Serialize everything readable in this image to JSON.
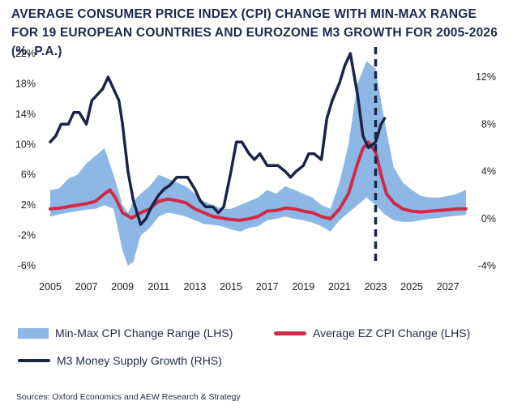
{
  "title": "AVERAGE CONSUMER PRICE INDEX (CPI) CHANGE WITH MIN-MAX RANGE FOR 19 EUROPEAN COUNTRIES AND EUROZONE M3 GROWTH FOR 2005-2026 (%, P.A.)",
  "source": "Sources: Oxford Economics and AEW Research & Strategy",
  "colors": {
    "range": "#8db8e5",
    "average": "#d02a46",
    "m3": "#1b2447",
    "marker": "#1b2447"
  },
  "legend": {
    "range": "Min-Max CPI Change Range (LHS)",
    "average": "Average EZ CPI Change (LHS)",
    "m3": "M3 Money Supply Growth (RHS)"
  },
  "chart_data": {
    "type": "line",
    "x_ticks": [
      "2005",
      "2007",
      "2009",
      "2011",
      "2013",
      "2015",
      "2017",
      "2019",
      "2021",
      "2023",
      "2025",
      "2027"
    ],
    "y_left_ticks": [
      "22%",
      "18%",
      "14%",
      "10%",
      "6%",
      "2%",
      "-2%",
      "-6%"
    ],
    "y_right_ticks": [
      "12%",
      "8%",
      "4%",
      "0%",
      "-4%"
    ],
    "ylim_left": [
      -6,
      22
    ],
    "ylim_right": [
      -4,
      14
    ],
    "vertical_marker_x": 2023,
    "series": [
      {
        "name": "Min-Max CPI Change Range (LHS)",
        "kind": "range",
        "x": [
          2005,
          2005.5,
          2006,
          2006.5,
          2007,
          2007.5,
          2008,
          2008.5,
          2009,
          2009.3,
          2009.6,
          2010,
          2010.5,
          2011,
          2011.5,
          2012,
          2012.5,
          2013,
          2013.5,
          2014,
          2014.5,
          2015,
          2015.5,
          2016,
          2016.5,
          2017,
          2017.5,
          2018,
          2018.5,
          2019,
          2019.5,
          2020,
          2020.5,
          2021,
          2021.5,
          2022,
          2022.5,
          2023,
          2023.5,
          2024,
          2024.5,
          2025,
          2025.5,
          2026,
          2026.5,
          2027,
          2027.5,
          2028
        ],
        "low": [
          0.5,
          0.8,
          1.0,
          1.2,
          1.4,
          1.5,
          2.0,
          1.5,
          -4,
          -6,
          -5.5,
          -2,
          -1,
          0.5,
          1,
          0.8,
          0.5,
          0,
          -0.5,
          -0.6,
          -0.8,
          -1.2,
          -1.5,
          -1,
          -0.8,
          0,
          0.2,
          0.5,
          0.2,
          0,
          -0.3,
          -0.8,
          -1.5,
          0,
          1,
          2,
          3,
          2,
          0.8,
          0,
          -0.2,
          -0.2,
          0,
          0.2,
          0.3,
          0.5,
          0.6,
          0.7
        ],
        "high": [
          4,
          4.2,
          5.5,
          6,
          7.5,
          8.5,
          9.5,
          6,
          2,
          1,
          2.5,
          3.5,
          4.5,
          6,
          5.5,
          5,
          4.5,
          3.5,
          2.5,
          2,
          1.5,
          1.5,
          2,
          2.5,
          3,
          4,
          3.5,
          4.5,
          4,
          3.5,
          3,
          2,
          1.5,
          5,
          10,
          18,
          21,
          20,
          13,
          7,
          5,
          4,
          3.2,
          3,
          3,
          3.2,
          3.5,
          4
        ]
      },
      {
        "name": "Average EZ CPI Change (LHS)",
        "kind": "line",
        "x": [
          2005,
          2005.5,
          2006,
          2006.5,
          2007,
          2007.5,
          2008,
          2008.3,
          2008.6,
          2009,
          2009.5,
          2010,
          2010.5,
          2011,
          2011.5,
          2012,
          2012.5,
          2013,
          2013.5,
          2014,
          2014.5,
          2015,
          2015.5,
          2016,
          2016.5,
          2017,
          2017.5,
          2018,
          2018.5,
          2019,
          2019.5,
          2020,
          2020.5,
          2021,
          2021.5,
          2022,
          2022.3,
          2022.6,
          2023,
          2023.3,
          2023.6,
          2024,
          2024.5,
          2025,
          2025.5,
          2026,
          2026.5,
          2027,
          2027.5,
          2028
        ],
        "y": [
          1.5,
          1.6,
          1.8,
          2.0,
          2.2,
          2.5,
          3.5,
          4.0,
          3.0,
          1.0,
          0.3,
          1.0,
          1.5,
          2.5,
          2.8,
          2.6,
          2.3,
          1.5,
          1.0,
          0.5,
          0.3,
          0.1,
          0.0,
          0.2,
          0.5,
          1.2,
          1.3,
          1.6,
          1.5,
          1.2,
          1.0,
          0.5,
          0.2,
          1.5,
          3.5,
          7.5,
          9.5,
          10.3,
          9.0,
          6.0,
          3.5,
          2.3,
          1.5,
          1.2,
          1.1,
          1.2,
          1.3,
          1.4,
          1.5,
          1.5
        ]
      },
      {
        "name": "M3 Money Supply Growth (RHS)",
        "kind": "line",
        "x": [
          2005,
          2005.3,
          2005.6,
          2006,
          2006.3,
          2006.6,
          2007,
          2007.3,
          2007.6,
          2007.9,
          2008.2,
          2008.5,
          2008.8,
          2009,
          2009.3,
          2009.6,
          2010,
          2010.3,
          2010.6,
          2011,
          2011.3,
          2011.6,
          2012,
          2012.3,
          2012.6,
          2013,
          2013.3,
          2013.6,
          2014,
          2014.3,
          2014.6,
          2015,
          2015.3,
          2015.6,
          2016,
          2016.3,
          2016.6,
          2017,
          2017.3,
          2017.6,
          2018,
          2018.3,
          2018.6,
          2019,
          2019.3,
          2019.6,
          2020,
          2020.3,
          2020.6,
          2021,
          2021.3,
          2021.6,
          2022,
          2022.3,
          2022.6,
          2023,
          2023.3,
          2023.5
        ],
        "y": [
          6.5,
          7.0,
          8.0,
          8.0,
          9.0,
          9.0,
          8.0,
          10.0,
          10.5,
          11.0,
          12.0,
          11.0,
          10.0,
          8.0,
          4.0,
          1.5,
          -0.5,
          0.0,
          1.0,
          2.0,
          2.5,
          2.8,
          3.5,
          3.5,
          3.5,
          2.5,
          1.5,
          1.0,
          1.0,
          0.5,
          1.0,
          4.0,
          6.5,
          6.5,
          5.5,
          5.0,
          5.5,
          4.5,
          4.5,
          4.5,
          4.0,
          3.5,
          4.0,
          4.5,
          5.5,
          5.5,
          5.0,
          8.5,
          10.0,
          11.5,
          13.0,
          14.0,
          10.5,
          7.0,
          6.0,
          6.5,
          8.0,
          8.5
        ]
      }
    ]
  }
}
